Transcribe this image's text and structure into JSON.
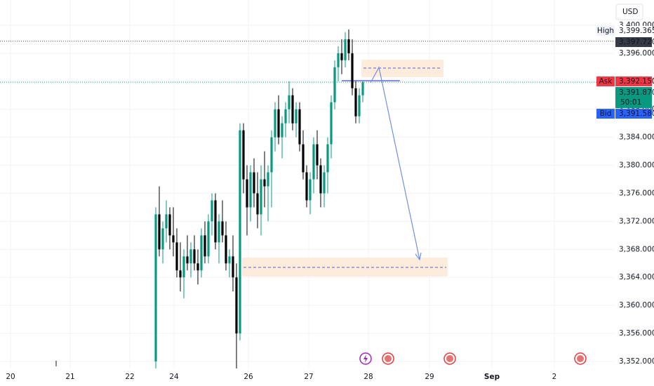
{
  "chart_data": {
    "type": "candlestick",
    "currency": "USD",
    "up_color": "#089981",
    "down_color": "#000000",
    "ylim": [
      3351,
      3403.6
    ],
    "yticks": [
      {
        "value": 3352,
        "label": "3,352.000"
      },
      {
        "value": 3356,
        "label": "3,356.000"
      },
      {
        "value": 3360,
        "label": "3,360.000"
      },
      {
        "value": 3364,
        "label": "3,364.000"
      },
      {
        "value": 3368,
        "label": "3,368.000"
      },
      {
        "value": 3372,
        "label": "3,372.000"
      },
      {
        "value": 3376,
        "label": "3,376.000"
      },
      {
        "value": 3380,
        "label": "3,380.000"
      },
      {
        "value": 3384,
        "label": "3,384.000"
      },
      {
        "value": 3388,
        "label": "3,388.000"
      },
      {
        "value": 3392,
        "label": "3,392.000"
      },
      {
        "value": 3396,
        "label": "3,396.000"
      },
      {
        "value": 3400,
        "label": "3,400.000"
      }
    ],
    "xlim": [
      -44.4,
      130.6
    ],
    "xticks": [
      {
        "value": -41.4,
        "label": "20"
      },
      {
        "value": -24.4,
        "label": "21"
      },
      {
        "value": -7.4,
        "label": "22"
      },
      {
        "value": 5.2,
        "label": "24"
      },
      {
        "value": 26.4,
        "label": "26"
      },
      {
        "value": 43.6,
        "label": "27"
      },
      {
        "value": 60.6,
        "label": "28"
      },
      {
        "value": 78,
        "label": "29"
      },
      {
        "value": 95.8,
        "label": "Sep"
      },
      {
        "value": 113.6,
        "label": "2"
      }
    ],
    "open": [
      3352,
      3373,
      3368,
      3371,
      3373,
      3370,
      3369,
      3365,
      3364,
      3367,
      3366,
      3368,
      3366,
      3365,
      3370,
      3367,
      3372,
      3375,
      3369,
      3372,
      3370,
      3366,
      3367,
      3364,
      3356,
      3385,
      3378,
      3374,
      3379,
      3376,
      3373,
      3378,
      3377,
      3379,
      3384,
      3388,
      3384,
      3386,
      3388,
      3390,
      3386,
      3388,
      3383,
      3379,
      3375,
      3378,
      3383,
      3380,
      3376,
      3379,
      3383,
      3389,
      3394,
      3396,
      3395,
      3398,
      3396,
      3391,
      3387,
      3390
    ],
    "high": [
      3374,
      3377,
      3372,
      3375,
      3374,
      3374,
      3371,
      3369,
      3368,
      3370,
      3369,
      3370,
      3368,
      3371,
      3372,
      3373,
      3376,
      3376,
      3373,
      3375,
      3372,
      3368,
      3370,
      3366,
      3386,
      3386,
      3380,
      3380,
      3381,
      3379,
      3380,
      3382,
      3380,
      3385,
      3389,
      3390,
      3387,
      3389,
      3392,
      3391,
      3389,
      3389,
      3385,
      3380,
      3379,
      3384,
      3385,
      3381,
      3380,
      3384,
      3390,
      3395,
      3397,
      3398,
      3399,
      3399.4,
      3398,
      3392,
      3391,
      3392
    ],
    "low": [
      3351,
      3367,
      3366,
      3369,
      3368,
      3367,
      3364,
      3362,
      3361,
      3365,
      3364,
      3365,
      3363,
      3364,
      3366,
      3366,
      3370,
      3368,
      3366,
      3369,
      3365,
      3364,
      3362,
      3351,
      3355,
      3376,
      3370,
      3372,
      3374,
      3371,
      3370,
      3374,
      3372,
      3374,
      3382,
      3383,
      3381,
      3384,
      3386,
      3385,
      3384,
      3382,
      3378,
      3374,
      3373,
      3376,
      3378,
      3374,
      3374,
      3376,
      3381,
      3388,
      3392,
      3393,
      3394,
      3395,
      3390,
      3386,
      3386,
      3389
    ],
    "close": [
      3373,
      3368,
      3371,
      3373,
      3370,
      3369,
      3365,
      3364,
      3367,
      3366,
      3368,
      3366,
      3365,
      3370,
      3367,
      3372,
      3375,
      3369,
      3372,
      3370,
      3366,
      3367,
      3364,
      3356,
      3385,
      3378,
      3374,
      3379,
      3376,
      3373,
      3378,
      3377,
      3379,
      3384,
      3388,
      3384,
      3386,
      3388,
      3390,
      3386,
      3388,
      3383,
      3379,
      3375,
      3378,
      3383,
      3380,
      3376,
      3379,
      3383,
      3389,
      3394,
      3396,
      3395,
      3398,
      3396,
      3391,
      3387,
      3390,
      3391.87
    ],
    "high_label": "High",
    "high_price": {
      "value": 3399.365,
      "label": "3,399.365"
    },
    "last_high": {
      "value": 3397.72,
      "label": "3,397.720"
    },
    "ask_label": "Ask",
    "ask_price": {
      "value": 3392.15,
      "label": "3,392.150"
    },
    "last_price": {
      "value": 3391.87,
      "label": "3,391.870"
    },
    "countdown": "50:01",
    "bid_label": "Bid",
    "bid_price": {
      "value": 3391.58,
      "label": "3,391.580"
    }
  }
}
